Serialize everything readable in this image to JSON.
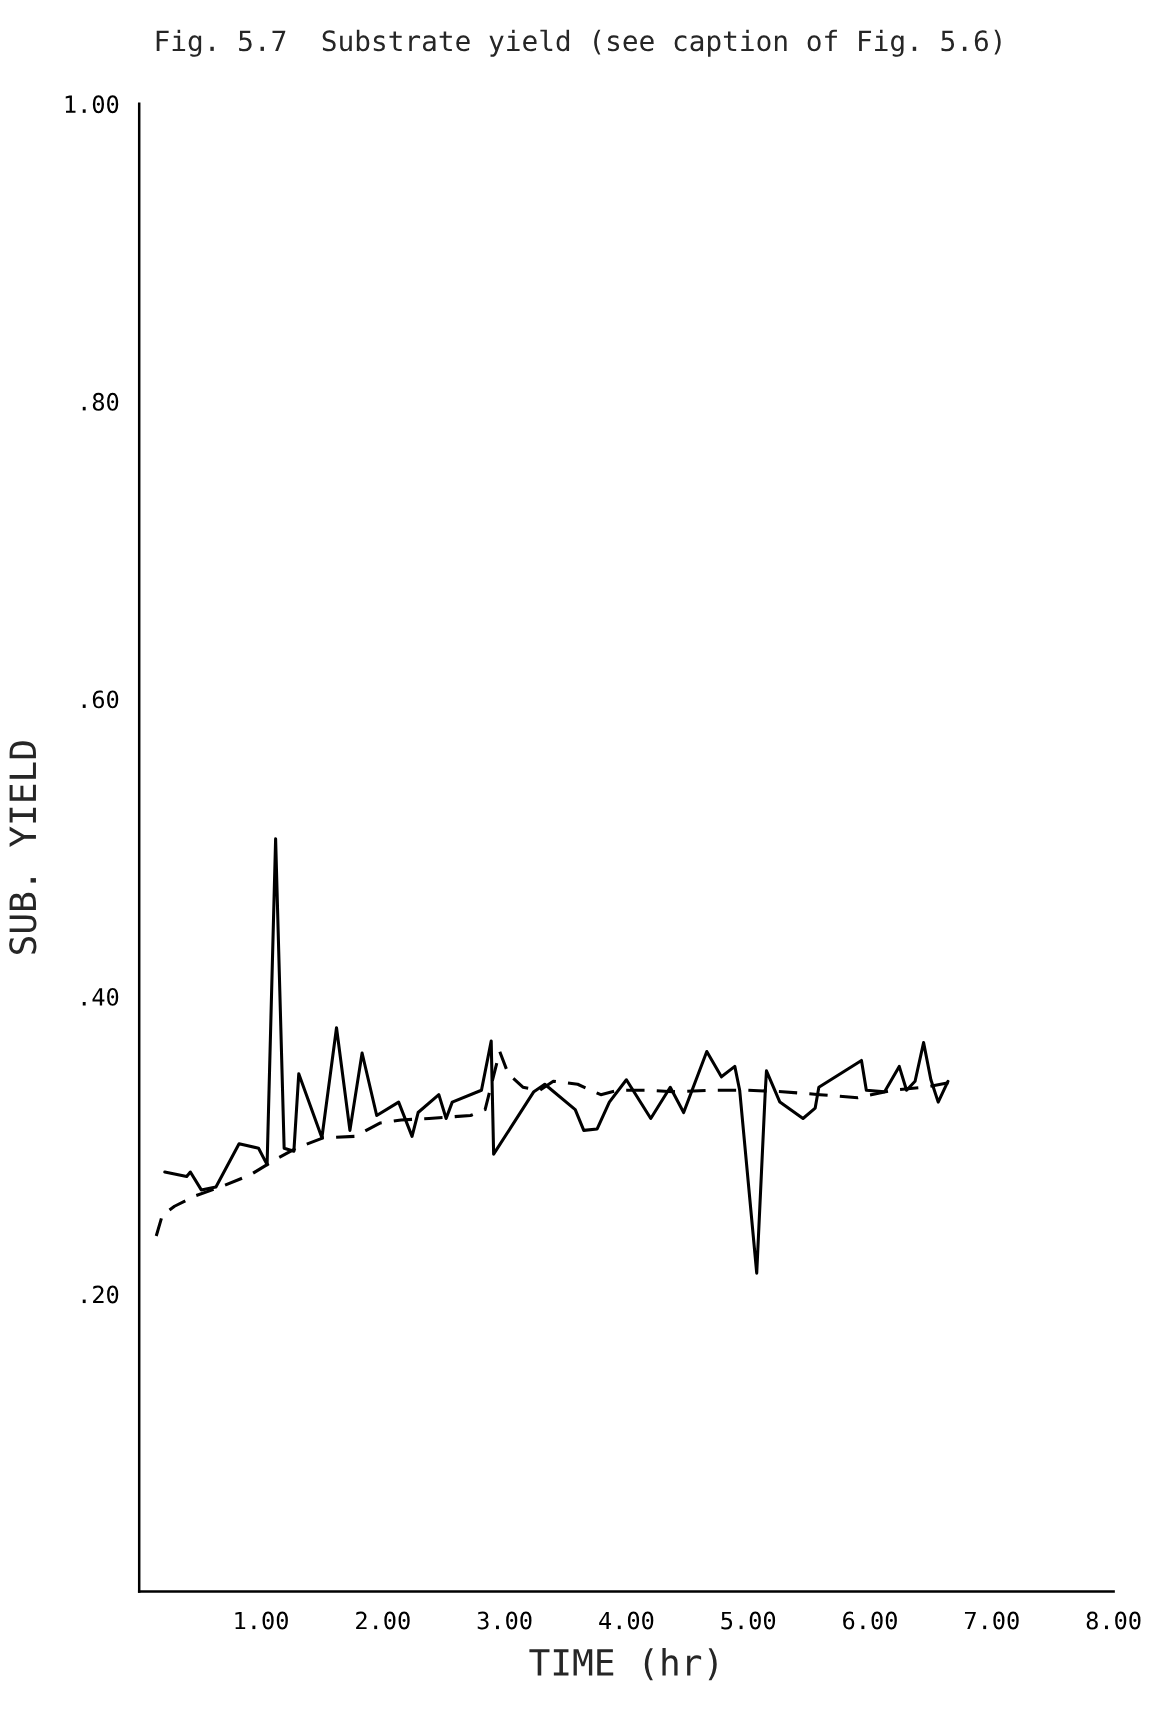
{
  "chart_data": {
    "type": "line",
    "title": "Fig. 5.7  Substrate yield (see caption of Fig. 5.6)",
    "xlabel": "TIME (hr)",
    "ylabel": "SUB. YIELD",
    "xlim": [
      0,
      8.0
    ],
    "ylim": [
      0,
      1.0
    ],
    "xticks": [
      {
        "value": 1,
        "label": "1.00"
      },
      {
        "value": 2,
        "label": "2.00"
      },
      {
        "value": 3,
        "label": "3.00"
      },
      {
        "value": 4,
        "label": "4.00"
      },
      {
        "value": 5,
        "label": "5.00"
      },
      {
        "value": 6,
        "label": "6.00"
      },
      {
        "value": 7,
        "label": "7.00"
      },
      {
        "value": 8,
        "label": "8.00"
      }
    ],
    "yticks": [
      {
        "value": 0.2,
        "label": ".20"
      },
      {
        "value": 0.4,
        "label": ".40"
      },
      {
        "value": 0.6,
        "label": ".60"
      },
      {
        "value": 0.8,
        "label": ".80"
      },
      {
        "value": 1.0,
        "label": "1.00"
      }
    ],
    "grid": false,
    "legend": false,
    "marker": "none",
    "series": [
      {
        "color": "#000000",
        "line_style": "solid",
        "x": [
          0.21,
          0.39,
          0.42,
          0.51,
          0.63,
          0.82,
          0.98,
          1.05,
          1.12,
          1.19,
          1.27,
          1.31,
          1.5,
          1.62,
          1.73,
          1.83,
          1.95,
          2.13,
          2.24,
          2.29,
          2.46,
          2.52,
          2.57,
          2.81,
          2.89,
          2.91,
          3.24,
          3.33,
          3.58,
          3.65,
          3.76,
          3.86,
          4.0,
          4.2,
          4.36,
          4.47,
          4.66,
          4.78,
          4.89,
          4.93,
          5.07,
          5.14,
          5.15,
          5.26,
          5.45,
          5.55,
          5.58,
          5.93,
          5.97,
          6.12,
          6.24,
          6.3,
          6.37,
          6.44,
          6.5,
          6.56,
          6.64
        ],
        "values": [
          0.282,
          0.279,
          0.282,
          0.27,
          0.272,
          0.301,
          0.298,
          0.287,
          0.506,
          0.298,
          0.296,
          0.348,
          0.305,
          0.379,
          0.31,
          0.362,
          0.32,
          0.329,
          0.306,
          0.322,
          0.334,
          0.318,
          0.329,
          0.337,
          0.37,
          0.294,
          0.336,
          0.341,
          0.324,
          0.31,
          0.311,
          0.329,
          0.344,
          0.318,
          0.339,
          0.322,
          0.363,
          0.346,
          0.353,
          0.337,
          0.214,
          0.336,
          0.35,
          0.329,
          0.318,
          0.325,
          0.339,
          0.357,
          0.337,
          0.336,
          0.353,
          0.337,
          0.343,
          0.369,
          0.344,
          0.329,
          0.343
        ]
      },
      {
        "color": "#000000",
        "line_style": "dashed",
        "x": [
          0.14,
          0.19,
          0.29,
          0.46,
          0.67,
          0.91,
          1.13,
          1.29,
          1.51,
          1.77,
          1.98,
          2.15,
          2.38,
          2.72,
          2.84,
          2.96,
          3.03,
          3.15,
          3.29,
          3.4,
          3.6,
          3.79,
          3.93,
          4.19,
          4.38,
          4.73,
          4.98,
          5.28,
          5.59,
          5.9,
          6.19,
          6.45,
          6.71
        ],
        "values": [
          0.239,
          0.253,
          0.259,
          0.266,
          0.272,
          0.28,
          0.291,
          0.298,
          0.305,
          0.306,
          0.315,
          0.317,
          0.318,
          0.32,
          0.324,
          0.363,
          0.348,
          0.339,
          0.337,
          0.343,
          0.341,
          0.334,
          0.337,
          0.337,
          0.336,
          0.337,
          0.337,
          0.336,
          0.334,
          0.332,
          0.337,
          0.339,
          0.343
        ]
      }
    ]
  }
}
